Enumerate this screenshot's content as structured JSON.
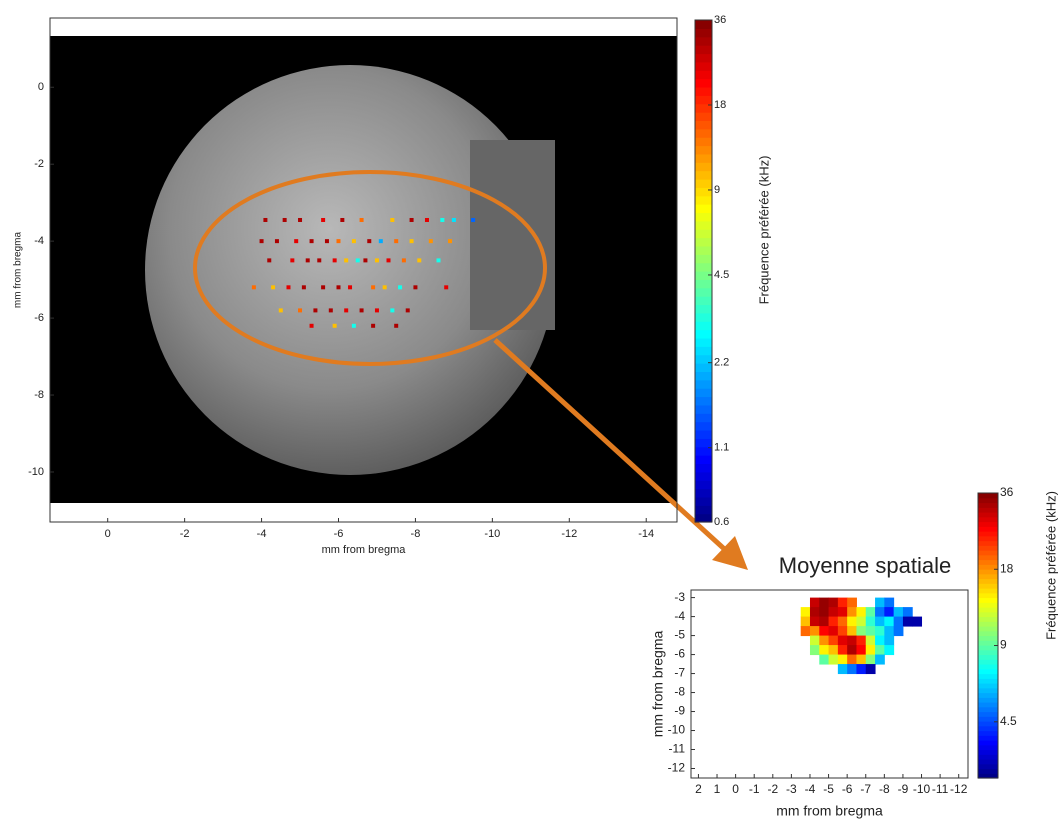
{
  "chart_data": [
    {
      "type": "scatter",
      "xlabel": "mm from bregma",
      "ylabel": "mm from bregma",
      "xlim": [
        1.5,
        -14.8
      ],
      "ylim": [
        -11.3,
        1.8
      ],
      "xticks": [
        0,
        -2,
        -4,
        -6,
        -8,
        -10,
        -12,
        -14
      ],
      "yticks": [
        0,
        -2,
        -4,
        -6,
        -8,
        -10
      ],
      "x": [
        -4.1,
        -4.6,
        -5.0,
        -5.6,
        -6.1,
        -6.6,
        -7.4,
        -7.9,
        -8.3,
        -8.7,
        -9.0,
        -9.5,
        -4.0,
        -4.4,
        -4.9,
        -5.3,
        -5.7,
        -6.0,
        -6.4,
        -6.8,
        -7.1,
        -7.5,
        -7.9,
        -8.4,
        -8.9,
        -4.2,
        -4.8,
        -5.2,
        -5.5,
        -5.9,
        -6.2,
        -6.5,
        -6.7,
        -7.0,
        -7.3,
        -7.7,
        -8.1,
        -8.6,
        -3.8,
        -4.3,
        -4.7,
        -5.1,
        -5.6,
        -6.0,
        -6.3,
        -6.9,
        -7.2,
        -7.6,
        -8.0,
        -8.8,
        -4.5,
        -5.0,
        -5.4,
        -5.8,
        -6.2,
        -6.6,
        -7.0,
        -7.4,
        -7.8,
        -5.3,
        -5.9,
        -6.4,
        -6.9,
        -7.5
      ],
      "y": [
        -3.45,
        -3.45,
        -3.45,
        -3.45,
        -3.45,
        -3.45,
        -3.45,
        -3.45,
        -3.45,
        -3.45,
        -3.45,
        -3.45,
        -4.0,
        -4.0,
        -4.0,
        -4.0,
        -4.0,
        -4.0,
        -4.0,
        -4.0,
        -4.0,
        -4.0,
        -4.0,
        -4.0,
        -4.0,
        -4.5,
        -4.5,
        -4.5,
        -4.5,
        -4.5,
        -4.5,
        -4.5,
        -4.5,
        -4.5,
        -4.5,
        -4.5,
        -4.5,
        -4.5,
        -5.2,
        -5.2,
        -5.2,
        -5.2,
        -5.2,
        -5.2,
        -5.2,
        -5.2,
        -5.2,
        -5.2,
        -5.2,
        -5.2,
        -5.8,
        -5.8,
        -5.8,
        -5.8,
        -5.8,
        -5.8,
        -5.8,
        -5.8,
        -5.8,
        -6.2,
        -6.2,
        -6.2,
        -6.2,
        -6.2
      ],
      "values": [
        30,
        30,
        30,
        24,
        30,
        14,
        10,
        30,
        24,
        3,
        2.5,
        1.5,
        30,
        30,
        24,
        30,
        30,
        14,
        10,
        30,
        2,
        14,
        10,
        12,
        12,
        30,
        24,
        30,
        30,
        24,
        10,
        3,
        30,
        10,
        24,
        14,
        10,
        3,
        14,
        10,
        24,
        30,
        30,
        30,
        24,
        14,
        10,
        3,
        30,
        24,
        10,
        14,
        30,
        30,
        24,
        30,
        24,
        3,
        30,
        24,
        10,
        3,
        30,
        30
      ],
      "colorbar": {
        "label": "Fréquence préférée (kHz)",
        "clim": [
          0.6,
          36
        ],
        "ticks": [
          0.6,
          1.1,
          2.2,
          4.5,
          9,
          18,
          36
        ],
        "log": true,
        "colormap": "jet"
      }
    },
    {
      "type": "heatmap",
      "title": "Moyenne spatiale",
      "xlabel": "mm from bregma",
      "ylabel": "mm from bregma",
      "xlim": [
        2.4,
        -12.5
      ],
      "ylim": [
        -12.5,
        -2.6
      ],
      "xticks": [
        2,
        1,
        0,
        -1,
        -2,
        -3,
        -4,
        -5,
        -6,
        -7,
        -8,
        -9,
        -10,
        -11,
        -12
      ],
      "yticks": [
        -3,
        -4,
        -5,
        -6,
        -7,
        -8,
        -9,
        -10,
        -11,
        -12
      ],
      "x": [
        -3.75,
        -4.25,
        -4.75,
        -5.25,
        -5.75,
        -6.25,
        -6.75,
        -7.25,
        -7.75,
        -8.25,
        -8.75,
        -9.25,
        -9.75
      ],
      "y": [
        -3.25,
        -3.75,
        -4.25,
        -4.75,
        -5.25,
        -5.75,
        -6.25,
        -6.75
      ],
      "z": [
        [
          null,
          30,
          34,
          32,
          24,
          20,
          null,
          null,
          6,
          5,
          null,
          null,
          null
        ],
        [
          14,
          32,
          34,
          30,
          28,
          18,
          14,
          9,
          5,
          4,
          6,
          5,
          null
        ],
        [
          16,
          30,
          32,
          24,
          20,
          14,
          12,
          8,
          6,
          7,
          5,
          3,
          3
        ],
        [
          20,
          18,
          26,
          28,
          22,
          16,
          10,
          9,
          8,
          6,
          5,
          null,
          null
        ],
        [
          null,
          12,
          18,
          22,
          28,
          30,
          24,
          12,
          7,
          6,
          null,
          null,
          null
        ],
        [
          null,
          10,
          14,
          16,
          24,
          32,
          26,
          14,
          9,
          7,
          null,
          null,
          null
        ],
        [
          null,
          null,
          9,
          12,
          14,
          20,
          16,
          10,
          6,
          null,
          null,
          null,
          null
        ],
        [
          null,
          null,
          null,
          null,
          6,
          5,
          4,
          3,
          null,
          null,
          null,
          null,
          null
        ]
      ],
      "colorbar": {
        "label": "Fréquence préférée (kHz)",
        "clim": [
          2.7,
          36
        ],
        "ticks": [
          4.5,
          9,
          18,
          36
        ],
        "log": true,
        "colormap": "jet"
      }
    }
  ]
}
